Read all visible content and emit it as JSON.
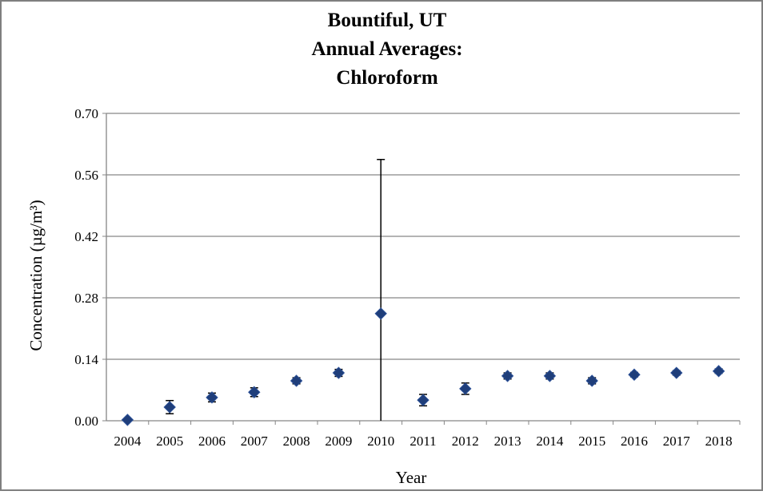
{
  "chart_data": {
    "type": "scatter-errorbar",
    "title": [
      "Bountiful, UT",
      "Annual Averages:",
      "Chloroform"
    ],
    "x_label": "Year",
    "y_label": "Concentration (µg/m³)",
    "categories": [
      "2004",
      "2005",
      "2006",
      "2007",
      "2008",
      "2009",
      "2010",
      "2011",
      "2012",
      "2013",
      "2014",
      "2015",
      "2016",
      "2017",
      "2018"
    ],
    "values": [
      0.002,
      0.031,
      0.053,
      0.065,
      0.091,
      0.109,
      0.244,
      0.047,
      0.073,
      0.102,
      0.102,
      0.091,
      0.105,
      0.109,
      0.113
    ],
    "errors": [
      0.001,
      0.015,
      0.01,
      0.01,
      0.007,
      0.008,
      0.351,
      0.013,
      0.013,
      0.007,
      0.007,
      0.007,
      0.005,
      0.005,
      0.005
    ],
    "color": "#1f3e7a",
    "ylim": [
      0,
      0.7
    ],
    "yticks": [
      {
        "value": 0,
        "label": "0.00"
      },
      {
        "value": 0.14,
        "label": "0.14"
      },
      {
        "value": 0.28,
        "label": "0.28"
      },
      {
        "value": 0.42,
        "label": "0.42"
      },
      {
        "value": 0.56,
        "label": "0.56"
      },
      {
        "value": 0.7,
        "label": "0.70"
      }
    ],
    "grid": true
  }
}
